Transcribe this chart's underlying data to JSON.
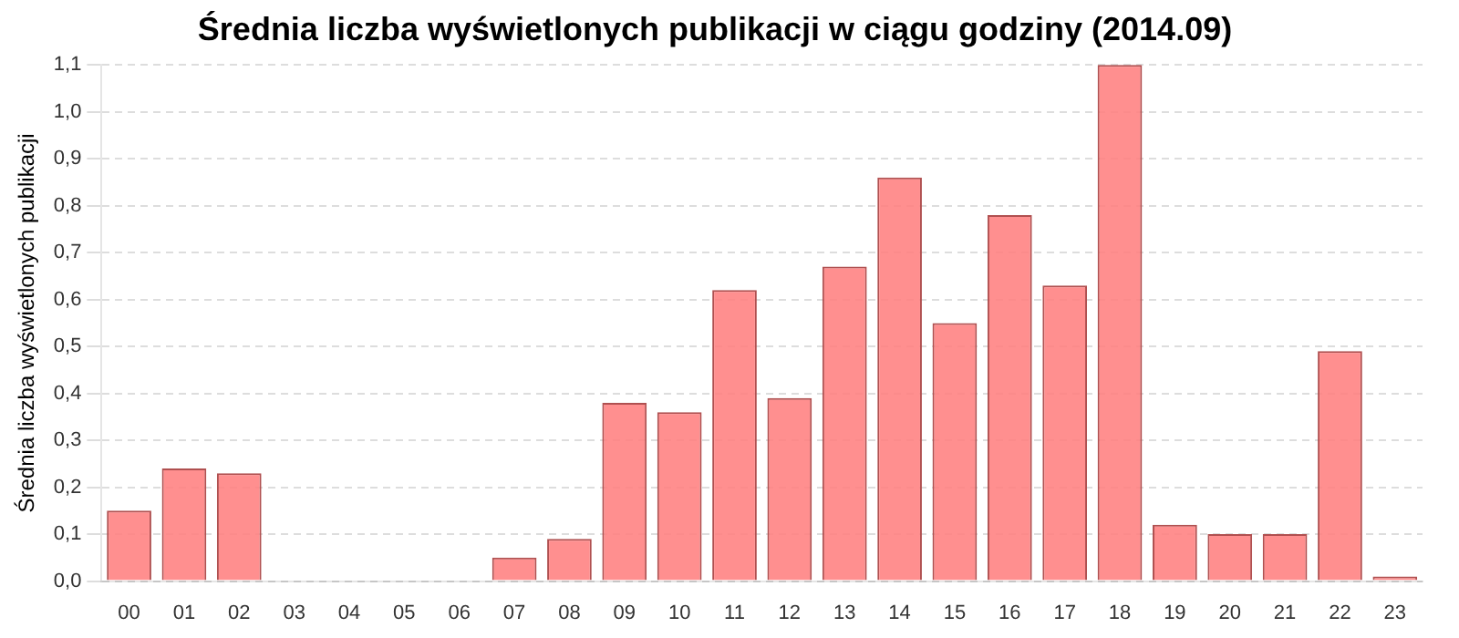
{
  "chart_data": {
    "type": "bar",
    "title": "Średnia liczba wyświetlonych publikacji w ciągu godziny (2014.09)",
    "ylabel": "Średnia liczba wyświetlonych publikacji",
    "categories": [
      "00",
      "01",
      "02",
      "03",
      "04",
      "05",
      "06",
      "07",
      "08",
      "09",
      "10",
      "11",
      "12",
      "13",
      "14",
      "15",
      "16",
      "17",
      "18",
      "19",
      "20",
      "21",
      "22",
      "23"
    ],
    "values": [
      0.15,
      0.24,
      0.23,
      0,
      0,
      0,
      0,
      0.05,
      0.09,
      0.38,
      0.36,
      0.62,
      0.39,
      0.67,
      0.86,
      0.55,
      0.78,
      0.63,
      1.1,
      0.12,
      0.1,
      0.1,
      0.49,
      0.01
    ],
    "color": "#ff8080",
    "ylim": [
      0,
      1.1
    ],
    "yticks": [
      {
        "value": 0,
        "label": "0,0"
      },
      {
        "value": 0.1,
        "label": "0,1"
      },
      {
        "value": 0.2,
        "label": "0,2"
      },
      {
        "value": 0.3,
        "label": "0,3"
      },
      {
        "value": 0.4,
        "label": "0,4"
      },
      {
        "value": 0.5,
        "label": "0,5"
      },
      {
        "value": 0.6,
        "label": "0,6"
      },
      {
        "value": 0.7,
        "label": "0,7"
      },
      {
        "value": 0.8,
        "label": "0,8"
      },
      {
        "value": 0.9,
        "label": "0,9"
      },
      {
        "value": 1.0,
        "label": "1,0"
      },
      {
        "value": 1.1,
        "label": "1,1"
      }
    ],
    "grid": "y"
  }
}
